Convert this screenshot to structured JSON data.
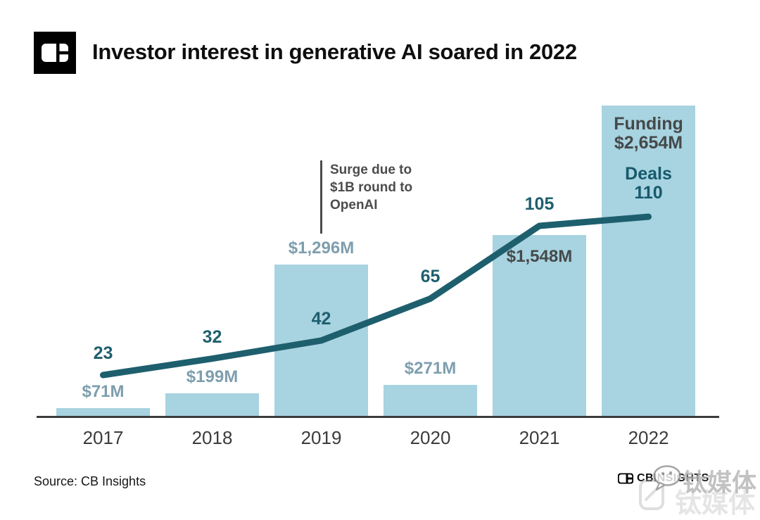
{
  "header": {
    "title": "Investor interest in generative AI soared in 2022"
  },
  "chart_data": {
    "type": "bar",
    "title": "Investor interest in generative AI soared in 2022",
    "categories": [
      "2017",
      "2018",
      "2019",
      "2020",
      "2021",
      "2022"
    ],
    "series": [
      {
        "name": "Funding ($M)",
        "chart": "bar",
        "color": "#a8d3e0",
        "values": [
          71,
          199,
          1296,
          271,
          1548,
          2654
        ],
        "labels": [
          "$71M",
          "$199M",
          "$1,296M",
          "$271M",
          "$1,548M",
          "$2,654M"
        ],
        "label_position": [
          "above",
          "above",
          "above",
          "above",
          "inside",
          "block"
        ]
      },
      {
        "name": "Deals",
        "chart": "line",
        "color": "#1e5f6e",
        "values": [
          23,
          32,
          42,
          65,
          105,
          110
        ],
        "labels": [
          "23",
          "32",
          "42",
          "65",
          "105",
          "110"
        ]
      }
    ],
    "final_labels": {
      "funding_title": "Funding",
      "funding_value": "$2,654M",
      "deals_title": "Deals",
      "deals_value": "110"
    },
    "annotation": {
      "target": "2019",
      "lines": [
        "Surge due to",
        "$1B round to",
        "OpenAI"
      ]
    },
    "xlabel": "",
    "ylabel": "",
    "ylim_funding": [
      0,
      3552
    ],
    "ylim_deals": [
      0,
      229
    ],
    "grid": false,
    "legend": "none"
  },
  "footer": {
    "source": "Source: CB Insights",
    "brand": "CBINSIGHTS"
  },
  "watermark": {
    "text": "钛媒体",
    "text_shadow": "钛媒体"
  }
}
